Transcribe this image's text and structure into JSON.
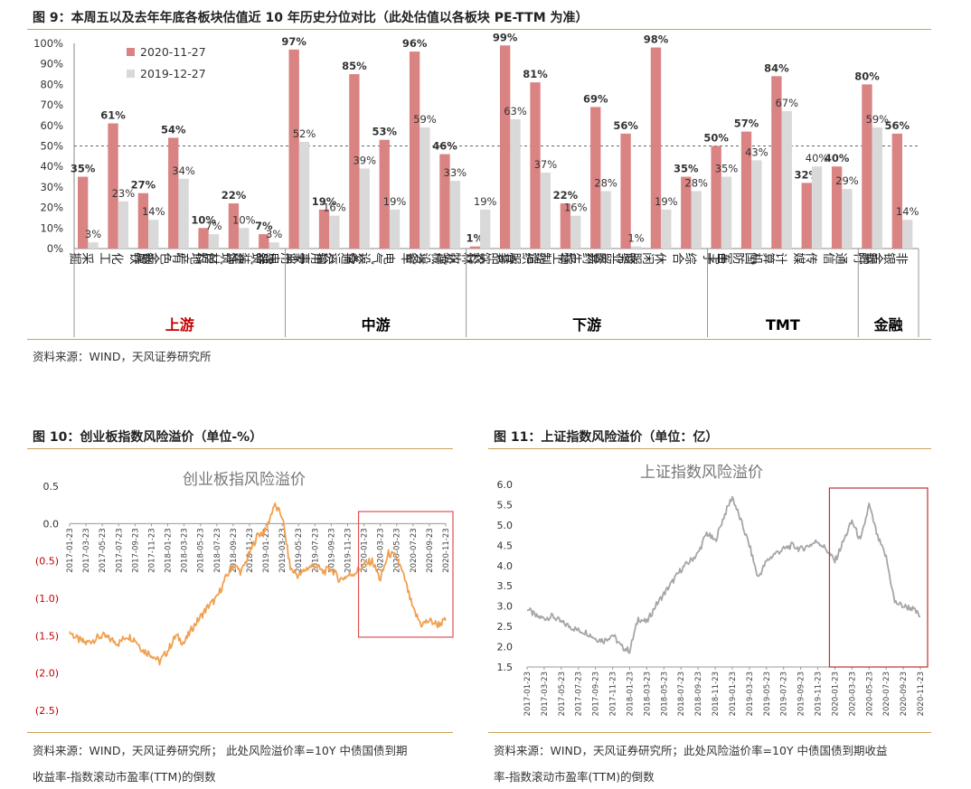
{
  "fig9": {
    "title": "图 9：本周五以及去年年底各板块估值近 10 年历史分位对比（此处估值以各板块 PE-TTM 为准）",
    "source": "资料来源：WIND，天风证券研究所",
    "chart_data": {
      "type": "bar",
      "series": [
        {
          "name": "2020-11-27",
          "color": "#d98383",
          "values": [
            35,
            61,
            27,
            54,
            10,
            22,
            7,
            97,
            19,
            85,
            53,
            96,
            46,
            1,
            99,
            81,
            22,
            69,
            56,
            98,
            35,
            50,
            57,
            84,
            32,
            40,
            80,
            56
          ]
        },
        {
          "name": "2019-12-27",
          "color": "#d9d9d9",
          "values": [
            3,
            23,
            14,
            34,
            7,
            10,
            3,
            52,
            16,
            39,
            19,
            59,
            33,
            19,
            63,
            37,
            16,
            28,
            1,
            19,
            28,
            35,
            43,
            67,
            40,
            29,
            59,
            14
          ]
        }
      ],
      "categories": [
        "采掘",
        "化工",
        "钢铁",
        "有色金属",
        "房地产",
        "建筑材料",
        "建筑装饰",
        "家用电器",
        "公用事业",
        "交通运输",
        "电气设备",
        "汽车",
        "机械设备",
        "农林牧渔",
        "食品饮料",
        "纺织服装",
        "轻工制造",
        "医药生物",
        "商业贸易",
        "休闲服务",
        "综合",
        "电子",
        "国防军工",
        "计算机",
        "传媒",
        "通信",
        "银行",
        "非银金融"
      ],
      "groups": [
        {
          "name": "上游",
          "start": 0,
          "end": 6,
          "color": "#c00000"
        },
        {
          "name": "中游",
          "start": 7,
          "end": 12,
          "color": "#000000"
        },
        {
          "name": "下游",
          "start": 13,
          "end": 20,
          "color": "#000000"
        },
        {
          "name": "TMT",
          "start": 21,
          "end": 25,
          "color": "#000000"
        },
        {
          "name": "金融",
          "start": 26,
          "end": 27,
          "color": "#000000"
        }
      ],
      "ylim": [
        0,
        100
      ],
      "yticks": [
        "0%",
        "10%",
        "20%",
        "30%",
        "40%",
        "50%",
        "60%",
        "70%",
        "80%",
        "90%",
        "100%"
      ],
      "reference_line": 50,
      "legend_position": "top-left"
    }
  },
  "fig10": {
    "title": "图 10：创业板指数风险溢价（单位-%）",
    "source_line1": "资料来源：WIND，天风证券研究所；   此处风险溢价率=10Y 中债国债到期",
    "source_line2": "收益率-指数滚动市盈率(TTM)的倒数",
    "chart_data": {
      "type": "line",
      "title": "创业板指风险溢价",
      "color": "#f0a050",
      "ylim": [
        -2.5,
        0.5
      ],
      "yticks": [
        {
          "value": 0.5,
          "label": "0.5"
        },
        {
          "value": 0.0,
          "label": "0.0"
        },
        {
          "value": -0.5,
          "label": "(0.5)"
        },
        {
          "value": -1.0,
          "label": "(1.0)"
        },
        {
          "value": -1.5,
          "label": "(1.5)"
        },
        {
          "value": -2.0,
          "label": "(2.0)"
        },
        {
          "value": -2.5,
          "label": "(2.5)"
        }
      ],
      "xticks": [
        "2017-01-23",
        "2017-03-23",
        "2017-05-23",
        "2017-07-23",
        "2017-09-23",
        "2017-11-23",
        "2018-01-23",
        "2018-03-23",
        "2018-05-23",
        "2018-07-23",
        "2018-09-23",
        "2018-11-23",
        "2019-01-23",
        "2019-03-23",
        "2019-05-23",
        "2019-07-23",
        "2019-09-23",
        "2019-11-23",
        "2020-01-23",
        "2020-03-23",
        "2020-05-23",
        "2020-07-23",
        "2020-09-23",
        "2020-11-23"
      ],
      "x": [
        "2017-01",
        "2017-02",
        "2017-03",
        "2017-04",
        "2017-05",
        "2017-06",
        "2017-07",
        "2017-08",
        "2017-09",
        "2017-10",
        "2017-11",
        "2017-12",
        "2018-01",
        "2018-02",
        "2018-03",
        "2018-04",
        "2018-05",
        "2018-06",
        "2018-07",
        "2018-08",
        "2018-09",
        "2018-10",
        "2018-11",
        "2018-12",
        "2019-01",
        "2019-02",
        "2019-03",
        "2019-04",
        "2019-05",
        "2019-06",
        "2019-07",
        "2019-08",
        "2019-09",
        "2019-10",
        "2019-11",
        "2019-12",
        "2020-01",
        "2020-02",
        "2020-03",
        "2020-04",
        "2020-05",
        "2020-06",
        "2020-07",
        "2020-08",
        "2020-09",
        "2020-10",
        "2020-11"
      ],
      "values": [
        -1.45,
        -1.55,
        -1.6,
        -1.55,
        -1.5,
        -1.55,
        -1.6,
        -1.5,
        -1.55,
        -1.7,
        -1.75,
        -1.85,
        -1.7,
        -1.5,
        -1.6,
        -1.4,
        -1.25,
        -1.1,
        -1.0,
        -0.75,
        -0.55,
        -0.65,
        -0.4,
        -0.15,
        -0.1,
        0.25,
        0.1,
        -0.6,
        -0.7,
        -0.6,
        -0.55,
        -0.65,
        -0.6,
        -0.75,
        -0.7,
        -0.65,
        -0.55,
        -0.5,
        -0.75,
        -0.4,
        -0.45,
        -0.75,
        -1.15,
        -1.35,
        -1.3,
        -1.35,
        -1.3
      ],
      "highlight_box": [
        "2020-01",
        "2020-11"
      ]
    }
  },
  "fig11": {
    "title": "图 11：上证指数风险溢价（单位：亿）",
    "source_line1": "资料来源：WIND，天风证券研究所；此处风险溢价率=10Y 中债国债到期收益",
    "source_line2": "率-指数滚动市盈率(TTM)的倒数",
    "chart_data": {
      "type": "line",
      "title": "上证指数风险溢价",
      "color": "#a6a6a6",
      "ylim": [
        1.5,
        6.0
      ],
      "yticks": [
        {
          "value": 6.0,
          "label": "6.0"
        },
        {
          "value": 5.5,
          "label": "5.5"
        },
        {
          "value": 5.0,
          "label": "5.0"
        },
        {
          "value": 4.5,
          "label": "4.5"
        },
        {
          "value": 4.0,
          "label": "4.0"
        },
        {
          "value": 3.5,
          "label": "3.5"
        },
        {
          "value": 3.0,
          "label": "3.0"
        },
        {
          "value": 2.5,
          "label": "2.5"
        },
        {
          "value": 2.0,
          "label": "2.0"
        },
        {
          "value": 1.5,
          "label": "1.5"
        }
      ],
      "xticks": [
        "2017-01-23",
        "2017-03-23",
        "2017-05-23",
        "2017-07-23",
        "2017-09-23",
        "2017-11-23",
        "2018-01-23",
        "2018-03-23",
        "2018-05-23",
        "2018-07-23",
        "2018-09-23",
        "2018-11-23",
        "2019-01-23",
        "2019-03-23",
        "2019-05-23",
        "2019-07-23",
        "2019-09-23",
        "2019-11-23",
        "2020-01-23",
        "2020-03-23",
        "2020-05-23",
        "2020-07-23",
        "2020-09-23",
        "2020-11-23"
      ],
      "x": [
        "2017-01",
        "2017-02",
        "2017-03",
        "2017-04",
        "2017-05",
        "2017-06",
        "2017-07",
        "2017-08",
        "2017-09",
        "2017-10",
        "2017-11",
        "2017-12",
        "2018-01",
        "2018-02",
        "2018-03",
        "2018-04",
        "2018-05",
        "2018-06",
        "2018-07",
        "2018-08",
        "2018-09",
        "2018-10",
        "2018-11",
        "2018-12",
        "2019-01",
        "2019-02",
        "2019-03",
        "2019-04",
        "2019-05",
        "2019-06",
        "2019-07",
        "2019-08",
        "2019-09",
        "2019-10",
        "2019-11",
        "2019-12",
        "2020-01",
        "2020-02",
        "2020-03",
        "2020-04",
        "2020-05",
        "2020-06",
        "2020-07",
        "2020-08",
        "2020-09",
        "2020-10",
        "2020-11"
      ],
      "values": [
        2.95,
        2.75,
        2.7,
        2.75,
        2.6,
        2.5,
        2.4,
        2.35,
        2.2,
        2.15,
        2.3,
        2.0,
        1.9,
        2.7,
        2.6,
        3.0,
        3.3,
        3.6,
        3.9,
        4.1,
        4.3,
        4.8,
        4.6,
        5.2,
        5.7,
        5.1,
        4.5,
        3.7,
        4.1,
        4.3,
        4.4,
        4.5,
        4.4,
        4.5,
        4.6,
        4.4,
        4.1,
        4.6,
        5.1,
        4.6,
        5.5,
        4.7,
        4.2,
        3.1,
        3.0,
        2.95,
        2.75
      ],
      "highlight_box": [
        "2020-01",
        "2020-11"
      ]
    }
  }
}
